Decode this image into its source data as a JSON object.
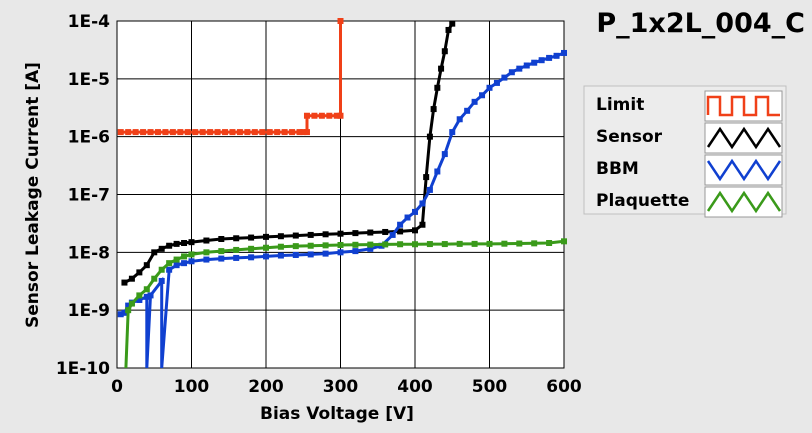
{
  "chart_data": {
    "type": "line",
    "title": "P_1x2L_004_C",
    "xlabel": "Bias Voltage [V]",
    "ylabel": "Sensor Leakage Current [A]",
    "xlim": [
      0,
      600
    ],
    "ylim": [
      1e-10,
      0.0001
    ],
    "yscale": "log",
    "grid": true,
    "legend_position": "right",
    "x_ticks": [
      0,
      100,
      200,
      300,
      400,
      500,
      600
    ],
    "y_ticks": [
      1e-10,
      1e-09,
      1e-08,
      1e-07,
      1e-06,
      1e-05,
      0.0001
    ],
    "x_tick_labels": [
      "0",
      "100",
      "200",
      "300",
      "400",
      "500",
      "600"
    ],
    "y_tick_labels": [
      "1E-10",
      "1E-9",
      "1E-8",
      "1E-7",
      "1E-6",
      "1E-5",
      "1E-4"
    ],
    "series": [
      {
        "name": "Limit",
        "color": "#f04018",
        "points": [
          [
            5,
            1.2e-06
          ],
          [
            15,
            1.2e-06
          ],
          [
            25,
            1.2e-06
          ],
          [
            35,
            1.2e-06
          ],
          [
            45,
            1.2e-06
          ],
          [
            55,
            1.2e-06
          ],
          [
            65,
            1.2e-06
          ],
          [
            75,
            1.2e-06
          ],
          [
            85,
            1.2e-06
          ],
          [
            95,
            1.2e-06
          ],
          [
            105,
            1.2e-06
          ],
          [
            115,
            1.2e-06
          ],
          [
            125,
            1.2e-06
          ],
          [
            135,
            1.2e-06
          ],
          [
            145,
            1.2e-06
          ],
          [
            155,
            1.2e-06
          ],
          [
            165,
            1.2e-06
          ],
          [
            175,
            1.2e-06
          ],
          [
            185,
            1.2e-06
          ],
          [
            195,
            1.2e-06
          ],
          [
            205,
            1.2e-06
          ],
          [
            215,
            1.2e-06
          ],
          [
            225,
            1.2e-06
          ],
          [
            235,
            1.2e-06
          ],
          [
            245,
            1.2e-06
          ],
          [
            250,
            1.2e-06
          ],
          [
            255,
            1.2e-06
          ],
          [
            255,
            2.3e-06
          ],
          [
            265,
            2.3e-06
          ],
          [
            275,
            2.3e-06
          ],
          [
            285,
            2.3e-06
          ],
          [
            295,
            2.3e-06
          ],
          [
            300,
            2.3e-06
          ],
          [
            300,
            0.0001
          ]
        ]
      },
      {
        "name": "Sensor",
        "color": "#000000",
        "points": [
          [
            10,
            3e-09
          ],
          [
            20,
            3.5e-09
          ],
          [
            30,
            4.5e-09
          ],
          [
            40,
            6e-09
          ],
          [
            50,
            1e-08
          ],
          [
            60,
            1.15e-08
          ],
          [
            70,
            1.3e-08
          ],
          [
            80,
            1.4e-08
          ],
          [
            90,
            1.45e-08
          ],
          [
            100,
            1.5e-08
          ],
          [
            120,
            1.6e-08
          ],
          [
            140,
            1.7e-08
          ],
          [
            160,
            1.75e-08
          ],
          [
            180,
            1.8e-08
          ],
          [
            200,
            1.85e-08
          ],
          [
            220,
            1.9e-08
          ],
          [
            240,
            1.95e-08
          ],
          [
            260,
            2e-08
          ],
          [
            280,
            2.05e-08
          ],
          [
            300,
            2.1e-08
          ],
          [
            320,
            2.15e-08
          ],
          [
            340,
            2.2e-08
          ],
          [
            360,
            2.25e-08
          ],
          [
            380,
            2.3e-08
          ],
          [
            400,
            2.4e-08
          ],
          [
            410,
            3e-08
          ],
          [
            415,
            2e-07
          ],
          [
            420,
            1e-06
          ],
          [
            425,
            3e-06
          ],
          [
            430,
            7e-06
          ],
          [
            435,
            1.5e-05
          ],
          [
            440,
            3e-05
          ],
          [
            445,
            7e-05
          ],
          [
            450,
            9e-05
          ]
        ]
      },
      {
        "name": "BBM",
        "color": "#1040d0",
        "points": [
          [
            5,
            8.5e-10
          ],
          [
            10,
            9e-10
          ],
          [
            15,
            1.2e-09
          ],
          [
            20,
            1.35e-09
          ],
          [
            30,
            1.5e-09
          ],
          [
            40,
            1.7e-09
          ],
          [
            40,
            1e-10
          ],
          [
            45,
            1.8e-09
          ],
          [
            60,
            3.2e-09
          ],
          [
            60,
            1e-10
          ],
          [
            70,
            5e-09
          ],
          [
            80,
            6e-09
          ],
          [
            90,
            6.5e-09
          ],
          [
            100,
            7e-09
          ],
          [
            120,
            7.5e-09
          ],
          [
            140,
            7.8e-09
          ],
          [
            160,
            8e-09
          ],
          [
            180,
            8.2e-09
          ],
          [
            200,
            8.5e-09
          ],
          [
            220,
            8.8e-09
          ],
          [
            240,
            9e-09
          ],
          [
            260,
            9.2e-09
          ],
          [
            280,
            9.5e-09
          ],
          [
            300,
            1e-08
          ],
          [
            320,
            1.05e-08
          ],
          [
            340,
            1.15e-08
          ],
          [
            355,
            1.3e-08
          ],
          [
            370,
            2e-08
          ],
          [
            380,
            3e-08
          ],
          [
            390,
            4e-08
          ],
          [
            400,
            5e-08
          ],
          [
            410,
            7e-08
          ],
          [
            420,
            1.2e-07
          ],
          [
            430,
            2.5e-07
          ],
          [
            440,
            5e-07
          ],
          [
            450,
            1.2e-06
          ],
          [
            460,
            2e-06
          ],
          [
            470,
            2.8e-06
          ],
          [
            480,
            4e-06
          ],
          [
            490,
            5.2e-06
          ],
          [
            500,
            7e-06
          ],
          [
            510,
            8.5e-06
          ],
          [
            520,
            1.05e-05
          ],
          [
            530,
            1.3e-05
          ],
          [
            540,
            1.5e-05
          ],
          [
            550,
            1.7e-05
          ],
          [
            560,
            1.9e-05
          ],
          [
            570,
            2.1e-05
          ],
          [
            580,
            2.3e-05
          ],
          [
            590,
            2.5e-05
          ],
          [
            600,
            2.8e-05
          ]
        ]
      },
      {
        "name": "Plaquette",
        "color": "#3a9a1a",
        "points": [
          [
            12,
            1e-10
          ],
          [
            15,
            1e-09
          ],
          [
            20,
            1.3e-09
          ],
          [
            30,
            1.8e-09
          ],
          [
            40,
            2.3e-09
          ],
          [
            50,
            3.5e-09
          ],
          [
            60,
            5e-09
          ],
          [
            70,
            6.5e-09
          ],
          [
            80,
            7.5e-09
          ],
          [
            90,
            8.5e-09
          ],
          [
            100,
            9.2e-09
          ],
          [
            120,
            1e-08
          ],
          [
            140,
            1.05e-08
          ],
          [
            160,
            1.1e-08
          ],
          [
            180,
            1.15e-08
          ],
          [
            200,
            1.2e-08
          ],
          [
            220,
            1.25e-08
          ],
          [
            240,
            1.28e-08
          ],
          [
            260,
            1.3e-08
          ],
          [
            280,
            1.32e-08
          ],
          [
            300,
            1.34e-08
          ],
          [
            320,
            1.35e-08
          ],
          [
            340,
            1.36e-08
          ],
          [
            360,
            1.37e-08
          ],
          [
            380,
            1.38e-08
          ],
          [
            400,
            1.38e-08
          ],
          [
            420,
            1.39e-08
          ],
          [
            440,
            1.39e-08
          ],
          [
            460,
            1.4e-08
          ],
          [
            480,
            1.4e-08
          ],
          [
            500,
            1.4e-08
          ],
          [
            520,
            1.41e-08
          ],
          [
            540,
            1.42e-08
          ],
          [
            560,
            1.43e-08
          ],
          [
            580,
            1.45e-08
          ],
          [
            600,
            1.55e-08
          ]
        ]
      }
    ]
  }
}
